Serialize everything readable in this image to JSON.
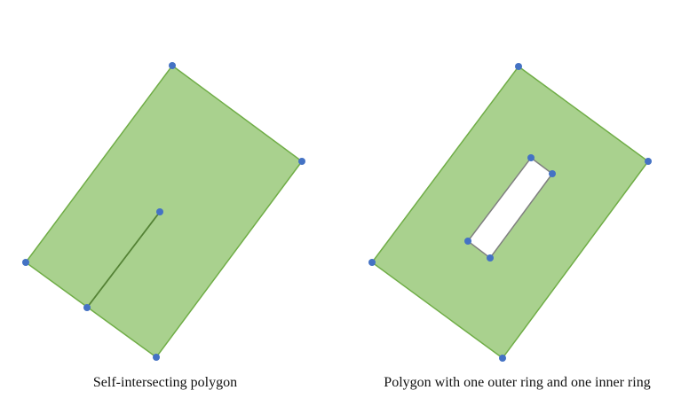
{
  "figures": [
    {
      "id": "self-intersecting",
      "caption": "Self-intersecting polygon"
    },
    {
      "id": "polygon-with-hole",
      "caption": "Polygon with one outer ring and one inner ring"
    }
  ],
  "colors": {
    "fill": "#a9d18e",
    "outline": "#70ad47",
    "inner_line": "#548235",
    "hole_outline": "#808080",
    "vertex": "#4472c4",
    "background": "#ffffff"
  }
}
